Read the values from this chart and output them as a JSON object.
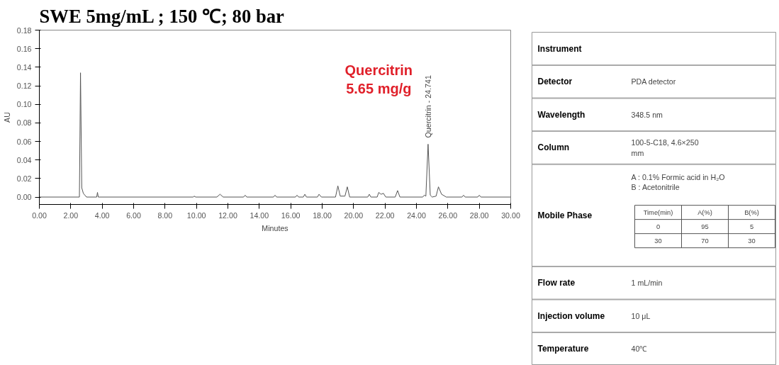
{
  "chart_data": [
    {
      "type": "line",
      "title": "SWE 5mg/mL ; 150 ℃; 80 bar",
      "xlabel": "Minutes",
      "ylabel": "AU",
      "color": "#555555",
      "x": [
        0,
        2.55,
        2.62,
        2.7,
        2.8,
        3.0,
        3.65,
        3.7,
        3.75,
        9.8,
        9.85,
        9.95,
        11.3,
        11.5,
        11.7,
        13.0,
        13.1,
        13.2,
        14.9,
        15.0,
        15.1,
        16.3,
        16.4,
        16.5,
        16.8,
        16.9,
        17.0,
        17.7,
        17.8,
        17.95,
        18.85,
        19.0,
        19.15,
        19.45,
        19.6,
        19.75,
        20.9,
        21.0,
        21.1,
        21.5,
        21.6,
        21.75,
        21.9,
        22.05,
        22.65,
        22.8,
        22.95,
        24.4,
        24.5,
        24.6,
        24.741,
        24.88,
        25.0,
        25.25,
        25.4,
        25.6,
        25.9,
        26.9,
        27.0,
        27.1,
        27.9,
        28.0,
        28.1,
        30
      ],
      "values": [
        0,
        0,
        0.134,
        0.01,
        0.004,
        0,
        0,
        0.005,
        0,
        0,
        0.001,
        0,
        0,
        0.003,
        0,
        0,
        0.002,
        0,
        0,
        0.002,
        0,
        0,
        0.002,
        0,
        0,
        0.003,
        0,
        0,
        0.003,
        0,
        0,
        0.012,
        0.001,
        0.001,
        0.011,
        0,
        0,
        0.003,
        0,
        0,
        0.005,
        0.003,
        0.004,
        0,
        0,
        0.007,
        0,
        0,
        0.002,
        0.001,
        0.057,
        0.002,
        0,
        0.001,
        0.011,
        0.003,
        0,
        0,
        0.002,
        0,
        0,
        0.002,
        0,
        0
      ],
      "xlim": [
        0,
        30
      ],
      "xticks": [
        {
          "value": 0,
          "label": "0.00"
        },
        {
          "value": 2,
          "label": "2.00"
        },
        {
          "value": 4,
          "label": "4.00"
        },
        {
          "value": 6,
          "label": "6.00"
        },
        {
          "value": 8,
          "label": "8.00"
        },
        {
          "value": 10,
          "label": "10.00"
        },
        {
          "value": 12,
          "label": "12.00"
        },
        {
          "value": 14,
          "label": "14.00"
        },
        {
          "value": 16,
          "label": "16.00"
        },
        {
          "value": 18,
          "label": "18.00"
        },
        {
          "value": 20,
          "label": "20.00"
        },
        {
          "value": 22,
          "label": "22.00"
        },
        {
          "value": 24,
          "label": "24.00"
        },
        {
          "value": 26,
          "label": "26.00"
        },
        {
          "value": 28,
          "label": "28.00"
        },
        {
          "value": 30,
          "label": "30.00"
        }
      ],
      "ylim": [
        -0.008,
        0.18
      ],
      "yticks": [
        {
          "value": 0,
          "label": "0.00"
        },
        {
          "value": 0.02,
          "label": "0.02"
        },
        {
          "value": 0.04,
          "label": "0.04"
        },
        {
          "value": 0.06,
          "label": "0.06"
        },
        {
          "value": 0.08,
          "label": "0.08"
        },
        {
          "value": 0.1,
          "label": "0.10"
        },
        {
          "value": 0.12,
          "label": "0.12"
        },
        {
          "value": 0.14,
          "label": "0.14"
        },
        {
          "value": 0.16,
          "label": "0.16"
        },
        {
          "value": 0.18,
          "label": "0.18"
        }
      ],
      "annotations": [
        "Quercitrin\n5.65 mg/g",
        {
          "text": "Quercitrin - 24.741",
          "x": 24.741,
          "y": 0.057
        }
      ]
    },
    {
      "type": "other",
      "categories": [
        "Instrument",
        "Detector",
        "Wavelength",
        "Column",
        "Mobile Phase",
        "Flow rate",
        "Injection volume",
        "Temperature"
      ],
      "value_labels": [
        null,
        "PDA detector",
        "348.5 nm",
        "100-5-C18, 4.6×250\nmm",
        "A : 0.1% Formic acid in H₂O\nB : Acetonitrile",
        "1 mL/min",
        "10 μL",
        "40℃"
      ],
      "annotations": [
        "Time(min)",
        "A(%)",
        "B(%)",
        "0",
        "95",
        "5",
        "30",
        "70",
        "30"
      ]
    }
  ]
}
